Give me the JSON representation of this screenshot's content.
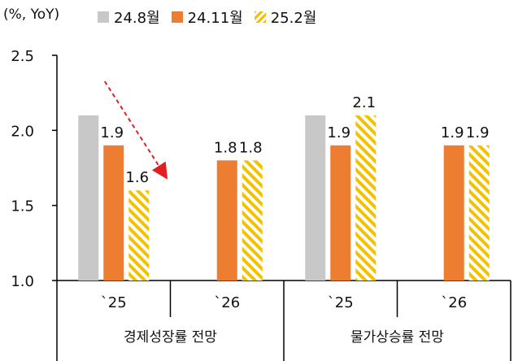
{
  "chart_data": {
    "type": "bar",
    "unit_label": "(%, YoY)",
    "ylim": [
      1.0,
      2.5
    ],
    "yticks": [
      "1.0",
      "1.5",
      "2.0",
      "2.5"
    ],
    "categories": [
      "`25",
      "`26",
      "`25",
      "`26"
    ],
    "groups": [
      "경제성장률 전망",
      "물가상승률 전망"
    ],
    "series": [
      {
        "name": "24.8월",
        "color": "#c8c8c8",
        "pattern": "solid",
        "values": [
          2.1,
          null,
          2.1,
          null
        ],
        "labels": [
          "",
          "",
          "",
          ""
        ]
      },
      {
        "name": "24.11월",
        "color": "#ed7d31",
        "pattern": "solid",
        "values": [
          1.9,
          1.8,
          1.9,
          1.9
        ],
        "labels": [
          "1.9",
          "1.8",
          "1.9",
          "1.9"
        ]
      },
      {
        "name": "25.2월",
        "color": "#f2c200",
        "pattern": "hatched",
        "values": [
          1.6,
          1.8,
          2.1,
          1.9
        ],
        "labels": [
          "1.6",
          "1.8",
          "2.1",
          "1.9"
        ]
      }
    ],
    "annotation": "red dashed downward arrow over 경제성장률 `25"
  }
}
